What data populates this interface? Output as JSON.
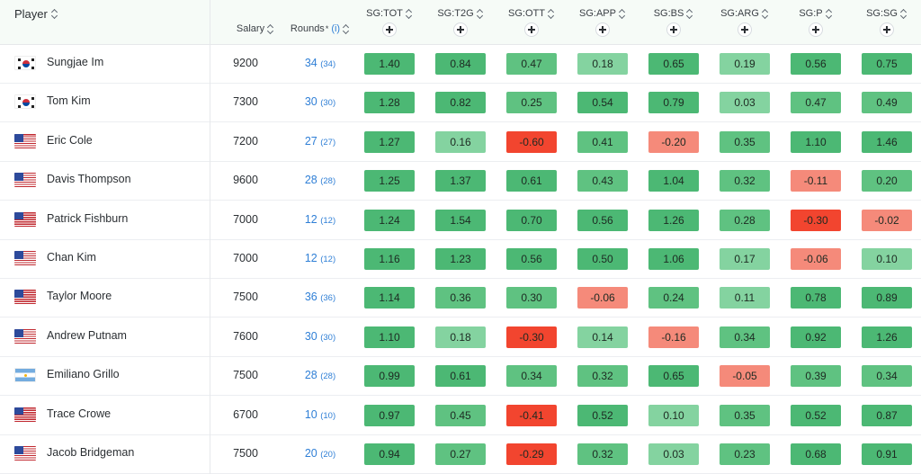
{
  "header": {
    "player": "Player",
    "salary": "Salary",
    "rounds": "Rounds",
    "rounds_marker": "*",
    "rounds_info": "(i)",
    "columns": [
      "SG:TOT",
      "SG:T2G",
      "SG:OTT",
      "SG:APP",
      "SG:BS",
      "SG:ARG",
      "SG:P",
      "SG:SG"
    ]
  },
  "colors": {
    "pos_strong": "#4cb874",
    "pos_mid": "#5fc281",
    "pos_light": "#84d3a0",
    "neg_light": "#f58a7a",
    "neg_strong": "#f2452f"
  },
  "rows": [
    {
      "flag": "kr",
      "name": "Sungjae Im",
      "salary": "9200",
      "rounds": "34",
      "rounds_sub": "(34)",
      "stats": [
        "1.40",
        "0.84",
        "0.47",
        "0.18",
        "0.65",
        "0.19",
        "0.56",
        "0.75"
      ]
    },
    {
      "flag": "kr",
      "name": "Tom Kim",
      "salary": "7300",
      "rounds": "30",
      "rounds_sub": "(30)",
      "stats": [
        "1.28",
        "0.82",
        "0.25",
        "0.54",
        "0.79",
        "0.03",
        "0.47",
        "0.49"
      ]
    },
    {
      "flag": "us",
      "name": "Eric Cole",
      "salary": "7200",
      "rounds": "27",
      "rounds_sub": "(27)",
      "stats": [
        "1.27",
        "0.16",
        "-0.60",
        "0.41",
        "-0.20",
        "0.35",
        "1.10",
        "1.46"
      ]
    },
    {
      "flag": "us",
      "name": "Davis Thompson",
      "salary": "9600",
      "rounds": "28",
      "rounds_sub": "(28)",
      "stats": [
        "1.25",
        "1.37",
        "0.61",
        "0.43",
        "1.04",
        "0.32",
        "-0.11",
        "0.20"
      ]
    },
    {
      "flag": "us",
      "name": "Patrick Fishburn",
      "salary": "7000",
      "rounds": "12",
      "rounds_sub": "(12)",
      "stats": [
        "1.24",
        "1.54",
        "0.70",
        "0.56",
        "1.26",
        "0.28",
        "-0.30",
        "-0.02"
      ]
    },
    {
      "flag": "us",
      "name": "Chan Kim",
      "salary": "7000",
      "rounds": "12",
      "rounds_sub": "(12)",
      "stats": [
        "1.16",
        "1.23",
        "0.56",
        "0.50",
        "1.06",
        "0.17",
        "-0.06",
        "0.10"
      ]
    },
    {
      "flag": "us",
      "name": "Taylor Moore",
      "salary": "7500",
      "rounds": "36",
      "rounds_sub": "(36)",
      "stats": [
        "1.14",
        "0.36",
        "0.30",
        "-0.06",
        "0.24",
        "0.11",
        "0.78",
        "0.89"
      ]
    },
    {
      "flag": "us",
      "name": "Andrew Putnam",
      "salary": "7600",
      "rounds": "30",
      "rounds_sub": "(30)",
      "stats": [
        "1.10",
        "0.18",
        "-0.30",
        "0.14",
        "-0.16",
        "0.34",
        "0.92",
        "1.26"
      ]
    },
    {
      "flag": "ar",
      "name": "Emiliano Grillo",
      "salary": "7500",
      "rounds": "28",
      "rounds_sub": "(28)",
      "stats": [
        "0.99",
        "0.61",
        "0.34",
        "0.32",
        "0.65",
        "-0.05",
        "0.39",
        "0.34"
      ]
    },
    {
      "flag": "us",
      "name": "Trace Crowe",
      "salary": "6700",
      "rounds": "10",
      "rounds_sub": "(10)",
      "stats": [
        "0.97",
        "0.45",
        "-0.41",
        "0.52",
        "0.10",
        "0.35",
        "0.52",
        "0.87"
      ]
    },
    {
      "flag": "us",
      "name": "Jacob Bridgeman",
      "salary": "7500",
      "rounds": "20",
      "rounds_sub": "(20)",
      "stats": [
        "0.94",
        "0.27",
        "-0.29",
        "0.32",
        "0.03",
        "0.23",
        "0.68",
        "0.91"
      ]
    }
  ]
}
